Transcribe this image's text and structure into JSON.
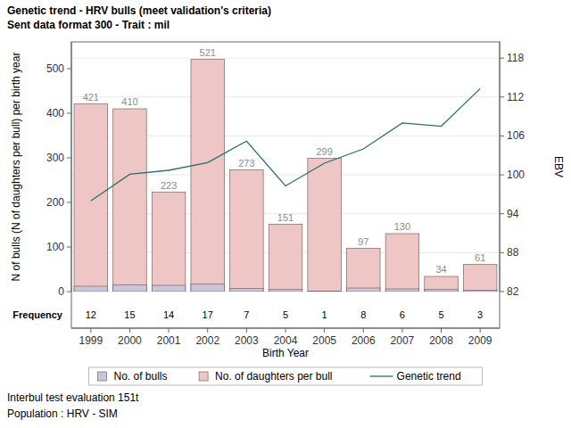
{
  "chart_data": {
    "type": "bar",
    "title": "Genetic trend - HRV bulls (meet validation's criteria)",
    "subtitle": "Sent data format 300 - Trait : mil",
    "x_label": "Birth Year",
    "y_label": "N of bulls (N of daughters per bull) per birth year",
    "y2_label": "EBV",
    "annotations": [
      "Frequency",
      "Interbul test evaluation 151t",
      "Population : HRV - SIM"
    ],
    "categories": [
      "1999",
      "2000",
      "2001",
      "2002",
      "2003",
      "2004",
      "2005",
      "2006",
      "2007",
      "2008",
      "2009"
    ],
    "series": [
      {
        "name": "No. of bulls",
        "type": "bar",
        "color": "#c9c6dc",
        "values": [
          12,
          15,
          14,
          17,
          7,
          5,
          1,
          8,
          6,
          5,
          3
        ]
      },
      {
        "name": "No. of daughters per bull",
        "type": "bar",
        "color": "#efc6c6",
        "data_labels": true,
        "values": [
          421,
          410,
          223,
          521,
          273,
          151,
          299,
          97,
          130,
          34,
          61
        ]
      },
      {
        "name": "Genetic trend",
        "type": "line",
        "axis": "y2",
        "color": "#2b6e6e",
        "line_style": "solid",
        "values": [
          96.0,
          100.1,
          100.7,
          101.9,
          105.2,
          98.3,
          101.8,
          104.0,
          108.0,
          107.5,
          113.3
        ]
      }
    ],
    "ylim": [
      0,
      560
    ],
    "yticks": [
      0,
      100,
      200,
      300,
      400,
      500
    ],
    "y2lim": [
      82,
      120.5
    ],
    "y2ticks": [
      82,
      88,
      94,
      100,
      106,
      112,
      118
    ],
    "grid": true,
    "legend": "bottom"
  }
}
